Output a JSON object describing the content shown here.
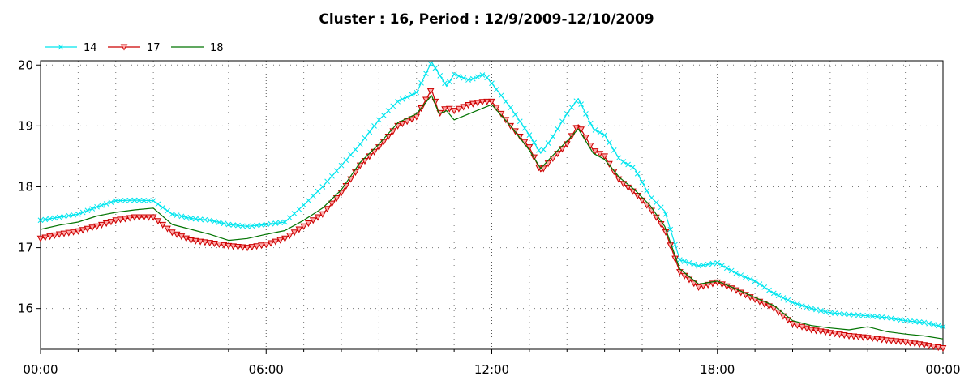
{
  "chart_data": {
    "type": "line",
    "title": "Cluster : 16, Period : 12/9/2009-12/10/2009",
    "xlabel": "",
    "ylabel": "",
    "x_unit": "hours",
    "xlim": [
      0,
      24
    ],
    "ylim": [
      15.33,
      20.07
    ],
    "x_ticks": [
      0,
      6,
      12,
      18,
      24
    ],
    "x_tick_labels": [
      "00:00",
      "06:00",
      "12:00",
      "18:00",
      "00:00"
    ],
    "y_ticks": [
      16,
      17,
      18,
      19,
      20
    ],
    "y_tick_labels": [
      "16",
      "17",
      "18",
      "19",
      "20"
    ],
    "grid": "dotted",
    "legend_position": "top-left",
    "series": [
      {
        "name": "14",
        "color": "#00e5ee",
        "marker": "x",
        "x": [
          0,
          0.5,
          1,
          1.5,
          2,
          2.5,
          3,
          3.5,
          4,
          4.5,
          5,
          5.5,
          6,
          6.5,
          7,
          7.5,
          8,
          8.5,
          9,
          9.5,
          10,
          10.4,
          10.6,
          10.8,
          11,
          11.4,
          11.8,
          12,
          12.5,
          13,
          13.3,
          13.6,
          14,
          14.3,
          14.7,
          15,
          15.4,
          15.8,
          16.2,
          16.6,
          17,
          17.5,
          18,
          18.5,
          19,
          19.5,
          20,
          20.5,
          21,
          21.5,
          22,
          22.5,
          23,
          23.5,
          24
        ],
        "values": [
          17.45,
          17.5,
          17.55,
          17.67,
          17.77,
          17.78,
          17.77,
          17.55,
          17.48,
          17.45,
          17.38,
          17.35,
          17.38,
          17.42,
          17.7,
          18.0,
          18.35,
          18.7,
          19.1,
          19.4,
          19.55,
          20.05,
          19.85,
          19.65,
          19.85,
          19.75,
          19.85,
          19.7,
          19.3,
          18.85,
          18.55,
          18.8,
          19.2,
          19.45,
          18.95,
          18.85,
          18.45,
          18.3,
          17.85,
          17.6,
          16.8,
          16.7,
          16.75,
          16.58,
          16.45,
          16.25,
          16.1,
          16.0,
          15.93,
          15.9,
          15.88,
          15.85,
          15.8,
          15.77,
          15.7
        ]
      },
      {
        "name": "17",
        "color": "#cc0000",
        "marker": "triangle-down",
        "x": [
          0,
          0.5,
          1,
          1.5,
          2,
          2.5,
          3,
          3.5,
          4,
          4.5,
          5,
          5.5,
          6,
          6.5,
          7,
          7.5,
          8,
          8.5,
          9,
          9.5,
          10,
          10.4,
          10.6,
          10.8,
          11,
          11.4,
          11.8,
          12,
          12.5,
          13,
          13.3,
          13.6,
          14,
          14.3,
          14.7,
          15,
          15.4,
          15.8,
          16.2,
          16.6,
          17,
          17.5,
          18,
          18.5,
          19,
          19.5,
          20,
          20.5,
          21,
          21.5,
          22,
          22.5,
          23,
          23.5,
          24
        ],
        "values": [
          17.15,
          17.22,
          17.27,
          17.35,
          17.45,
          17.5,
          17.5,
          17.25,
          17.12,
          17.08,
          17.03,
          17.0,
          17.05,
          17.15,
          17.35,
          17.55,
          17.9,
          18.35,
          18.65,
          19.0,
          19.15,
          19.6,
          19.2,
          19.3,
          19.25,
          19.35,
          19.4,
          19.4,
          19.0,
          18.65,
          18.25,
          18.45,
          18.7,
          19.02,
          18.6,
          18.5,
          18.1,
          17.9,
          17.65,
          17.3,
          16.6,
          16.35,
          16.43,
          16.3,
          16.15,
          16.0,
          15.75,
          15.65,
          15.6,
          15.55,
          15.52,
          15.48,
          15.45,
          15.4,
          15.35
        ]
      },
      {
        "name": "18",
        "color": "#007300",
        "marker": "none",
        "x": [
          0,
          0.5,
          1,
          1.5,
          2,
          2.5,
          3,
          3.5,
          4,
          4.5,
          5,
          5.5,
          6,
          6.5,
          7,
          7.5,
          8,
          8.5,
          9,
          9.5,
          10,
          10.4,
          10.6,
          10.8,
          11,
          11.4,
          11.8,
          12,
          12.5,
          13,
          13.3,
          13.6,
          14,
          14.3,
          14.7,
          15,
          15.4,
          15.8,
          16.2,
          16.6,
          17,
          17.5,
          18,
          18.5,
          19,
          19.5,
          20,
          20.5,
          21,
          21.5,
          22,
          22.5,
          23,
          23.5,
          24
        ],
        "values": [
          17.3,
          17.37,
          17.42,
          17.52,
          17.58,
          17.62,
          17.65,
          17.38,
          17.3,
          17.22,
          17.12,
          17.15,
          17.22,
          17.28,
          17.45,
          17.65,
          17.95,
          18.4,
          18.7,
          19.05,
          19.2,
          19.5,
          19.2,
          19.25,
          19.1,
          19.2,
          19.3,
          19.35,
          19.0,
          18.6,
          18.3,
          18.5,
          18.75,
          18.95,
          18.55,
          18.45,
          18.15,
          17.95,
          17.7,
          17.35,
          16.65,
          16.4,
          16.45,
          16.32,
          16.18,
          16.05,
          15.8,
          15.72,
          15.68,
          15.65,
          15.7,
          15.62,
          15.58,
          15.55,
          15.5
        ]
      }
    ]
  }
}
